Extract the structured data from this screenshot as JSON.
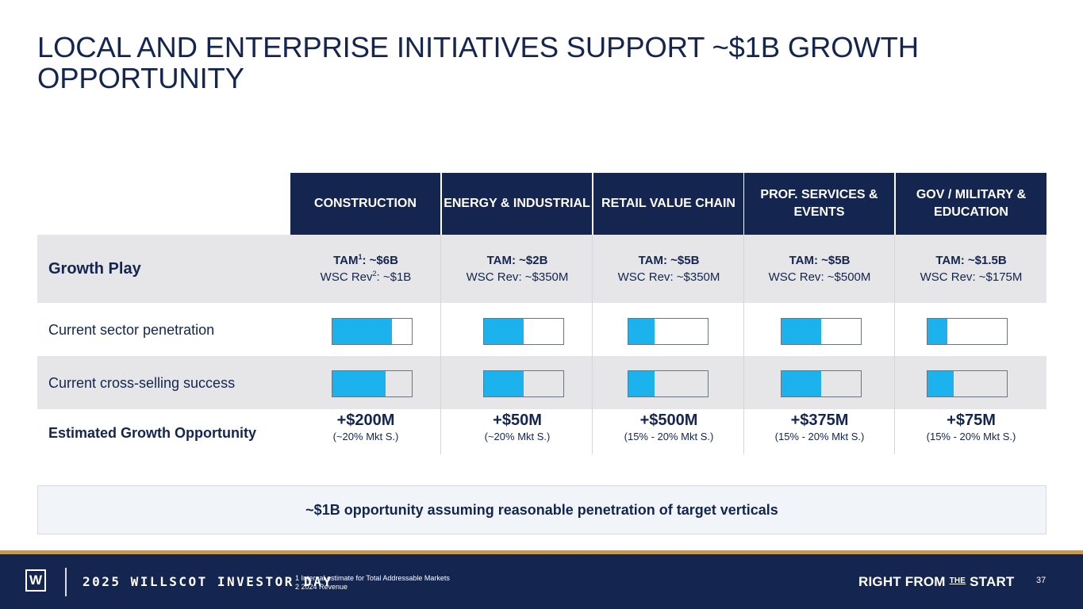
{
  "title": "LOCAL AND ENTERPRISE INITIATIVES SUPPORT ~$1B GROWTH OPPORTUNITY",
  "columns": [
    {
      "header": "CONSTRUCTION",
      "tam_label": "TAM",
      "tam_sup": "1",
      "tam_value": ": ~$6B",
      "rev_label": "WSC Rev",
      "rev_sup": "2",
      "rev_value": ": ~$1B",
      "penetration": 0.75,
      "cross_selling": 0.67,
      "opportunity": "+$200M",
      "opportunity_note": "(~20% Mkt S.)"
    },
    {
      "header": "ENERGY & INDUSTRIAL",
      "tam_label": "TAM",
      "tam_sup": "",
      "tam_value": ": ~$2B",
      "rev_label": "WSC Rev",
      "rev_sup": "",
      "rev_value": ": ~$350M",
      "penetration": 0.5,
      "cross_selling": 0.5,
      "opportunity": "+$50M",
      "opportunity_note": "(~20% Mkt S.)"
    },
    {
      "header": "RETAIL VALUE CHAIN",
      "tam_label": "TAM",
      "tam_sup": "",
      "tam_value": ": ~$5B",
      "rev_label": "WSC Rev",
      "rev_sup": "",
      "rev_value": ": ~$350M",
      "penetration": 0.33,
      "cross_selling": 0.33,
      "opportunity": "+$500M",
      "opportunity_note": "(15% - 20% Mkt S.)"
    },
    {
      "header": "PROF. SERVICES & EVENTS",
      "tam_label": "TAM",
      "tam_sup": "",
      "tam_value": ": ~$5B",
      "rev_label": "WSC Rev",
      "rev_sup": "",
      "rev_value": ": ~$500M",
      "penetration": 0.5,
      "cross_selling": 0.5,
      "opportunity": "+$375M",
      "opportunity_note": "(15% - 20% Mkt S.)"
    },
    {
      "header": "GOV / MILITARY & EDUCATION",
      "tam_label": "TAM",
      "tam_sup": "",
      "tam_value": ": ~$1.5B",
      "rev_label": "WSC Rev",
      "rev_sup": "",
      "rev_value": ": ~$175M",
      "penetration": 0.25,
      "cross_selling": 0.33,
      "opportunity": "+$75M",
      "opportunity_note": "(15% - 20% Mkt S.)"
    }
  ],
  "rows": {
    "growth_play": "Growth Play",
    "penetration": "Current sector penetration",
    "cross_selling": "Current cross-selling success",
    "opportunity": "Estimated Growth Opportunity"
  },
  "callout": "~$1B opportunity assuming reasonable penetration of target verticals",
  "footer": {
    "logo_letter": "W",
    "event": "2025 WILLSCOT INVESTOR DAY",
    "notes": [
      "1 Internal estimate for Total Addressable Markets",
      "2 2024 Revenue"
    ],
    "tagline_start": "RIGHT FROM ",
    "tagline_the": "THE",
    "tagline_end": " START",
    "page_number": "37"
  },
  "colors": {
    "navy": "#14254f",
    "accent": "#1cb2ee",
    "gold": "#c29a57",
    "shade": "#e6e6e8"
  }
}
